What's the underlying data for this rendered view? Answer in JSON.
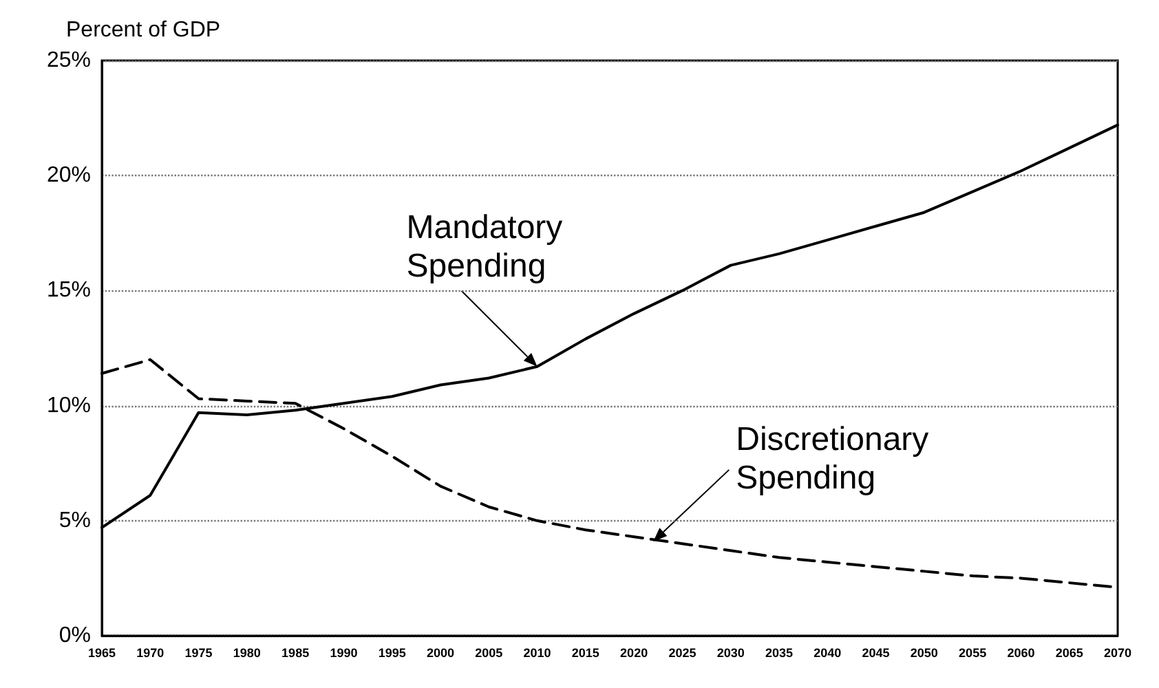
{
  "chart_data": {
    "type": "line",
    "ylabel": "Percent of GDP",
    "x": [
      1965,
      1970,
      1975,
      1980,
      1985,
      1990,
      1995,
      2000,
      2005,
      2010,
      2015,
      2020,
      2025,
      2030,
      2035,
      2040,
      2045,
      2050,
      2055,
      2060,
      2065,
      2070
    ],
    "series": [
      {
        "color": "#000000",
        "line_style": "solid",
        "values": [
          4.7,
          6.1,
          9.7,
          9.6,
          9.8,
          10.1,
          10.4,
          10.9,
          11.2,
          11.7,
          12.9,
          14.0,
          15.0,
          16.1,
          16.6,
          17.2,
          17.8,
          18.4,
          19.3,
          20.2,
          21.2,
          22.2
        ]
      },
      {
        "color": "#000000",
        "line_style": "dashed",
        "values": [
          11.4,
          12.0,
          10.3,
          10.2,
          10.1,
          9.0,
          7.8,
          6.5,
          5.6,
          5.0,
          4.6,
          4.3,
          4.0,
          3.7,
          3.4,
          3.2,
          3.0,
          2.8,
          2.6,
          2.5,
          2.3,
          2.1
        ]
      }
    ],
    "annotations": [
      {
        "text": "Mandatory\nSpending",
        "x": 2010,
        "y": 11.7
      },
      {
        "text": "Discretionary\nSpending",
        "x": 2022,
        "y": 4.1
      }
    ],
    "xlim": [
      1965,
      2070
    ],
    "xticks": [
      1965,
      1970,
      1975,
      1980,
      1985,
      1990,
      1995,
      2000,
      2005,
      2010,
      2015,
      2020,
      2025,
      2030,
      2035,
      2040,
      2045,
      2050,
      2055,
      2060,
      2065,
      2070
    ],
    "ylim": [
      0,
      25
    ],
    "yticks": [
      {
        "value": 0,
        "label": "0%"
      },
      {
        "value": 5,
        "label": "5%"
      },
      {
        "value": 10,
        "label": "10%"
      },
      {
        "value": 15,
        "label": "15%"
      },
      {
        "value": 20,
        "label": "20%"
      },
      {
        "value": 25,
        "label": "25%"
      }
    ],
    "grid": "y",
    "marker": "none"
  }
}
